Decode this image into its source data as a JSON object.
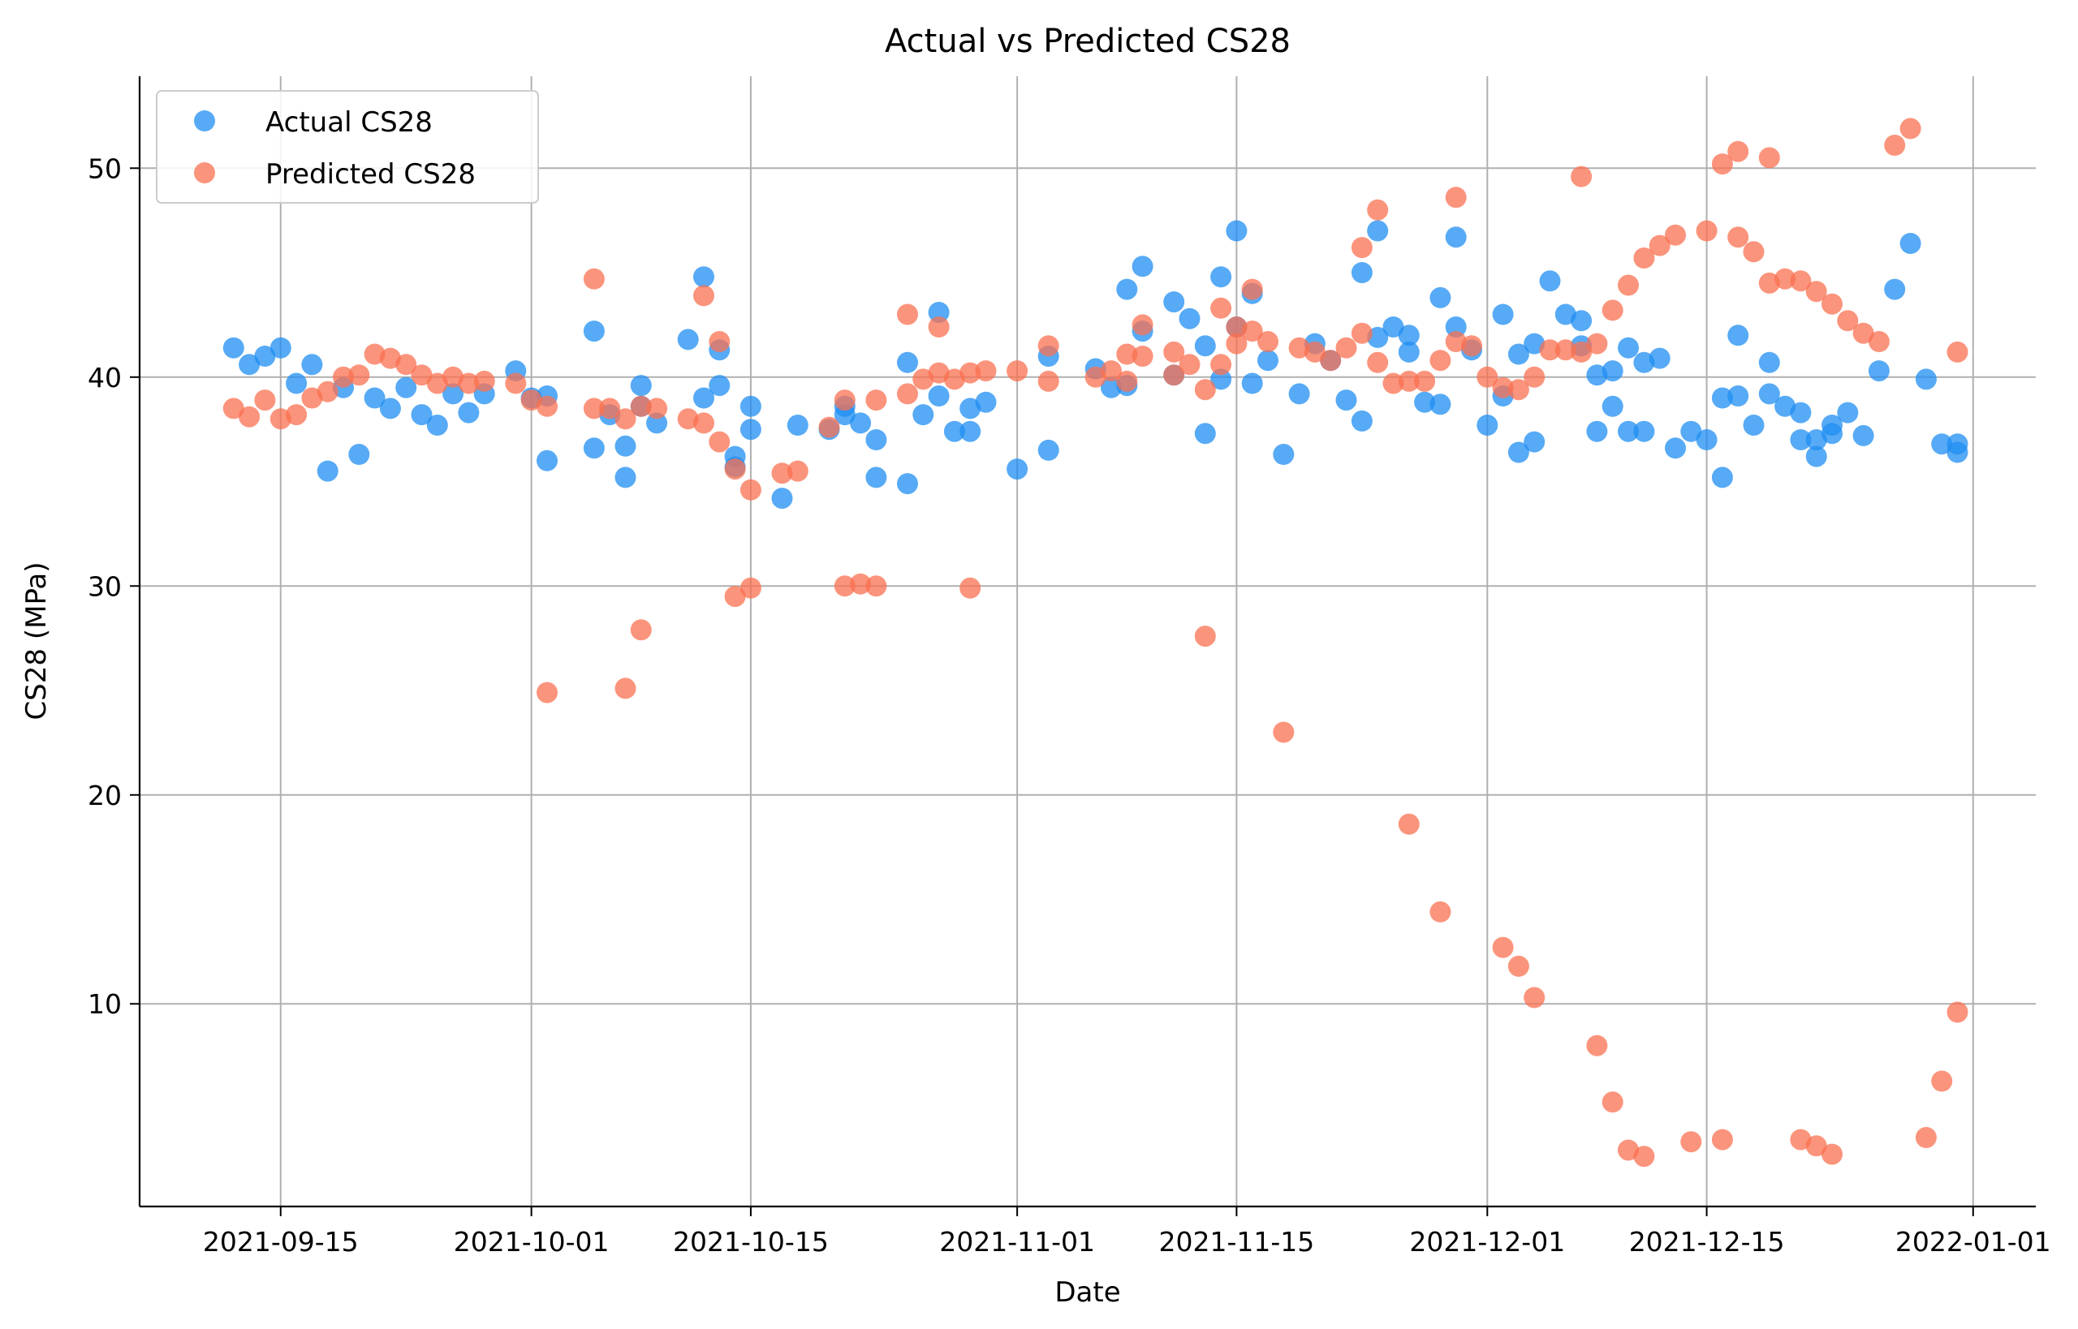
{
  "chart_data": {
    "type": "scatter",
    "title": "Actual vs Predicted CS28",
    "xlabel": "Date",
    "ylabel": "CS28 (MPa)",
    "grid": true,
    "legend_position": "top-left",
    "xlim": [
      "2021-09-06",
      "2022-01-05"
    ],
    "ylim": [
      0.3,
      54.4
    ],
    "x_ticks": [
      "2021-09-15",
      "2021-10-01",
      "2021-10-15",
      "2021-11-01",
      "2021-11-15",
      "2021-12-01",
      "2021-12-15",
      "2022-01-01"
    ],
    "y_ticks": [
      10,
      20,
      30,
      40,
      50
    ],
    "series": [
      {
        "name": "Actual CS28",
        "color": "#1f8ef1",
        "points": [
          [
            "2021-09-12",
            41.4
          ],
          [
            "2021-09-13",
            40.6
          ],
          [
            "2021-09-14",
            41.0
          ],
          [
            "2021-09-15",
            41.4
          ],
          [
            "2021-09-16",
            39.7
          ],
          [
            "2021-09-17",
            40.6
          ],
          [
            "2021-09-18",
            35.5
          ],
          [
            "2021-09-19",
            39.5
          ],
          [
            "2021-09-20",
            36.3
          ],
          [
            "2021-09-21",
            39.0
          ],
          [
            "2021-09-22",
            38.5
          ],
          [
            "2021-09-23",
            39.5
          ],
          [
            "2021-09-24",
            38.2
          ],
          [
            "2021-09-25",
            37.7
          ],
          [
            "2021-09-26",
            39.2
          ],
          [
            "2021-09-27",
            38.3
          ],
          [
            "2021-09-28",
            39.2
          ],
          [
            "2021-09-30",
            40.3
          ],
          [
            "2021-10-01",
            39.0
          ],
          [
            "2021-10-02",
            39.1
          ],
          [
            "2021-10-02",
            36.0
          ],
          [
            "2021-10-05",
            42.2
          ],
          [
            "2021-10-05",
            36.6
          ],
          [
            "2021-10-06",
            38.2
          ],
          [
            "2021-10-07",
            35.2
          ],
          [
            "2021-10-07",
            36.7
          ],
          [
            "2021-10-08",
            39.6
          ],
          [
            "2021-10-08",
            38.6
          ],
          [
            "2021-10-09",
            37.8
          ],
          [
            "2021-10-11",
            41.8
          ],
          [
            "2021-10-12",
            44.8
          ],
          [
            "2021-10-12",
            39.0
          ],
          [
            "2021-10-13",
            41.3
          ],
          [
            "2021-10-13",
            39.6
          ],
          [
            "2021-10-14",
            36.2
          ],
          [
            "2021-10-14",
            35.7
          ],
          [
            "2021-10-15",
            38.6
          ],
          [
            "2021-10-15",
            37.5
          ],
          [
            "2021-10-17",
            34.2
          ],
          [
            "2021-10-18",
            37.7
          ],
          [
            "2021-10-20",
            37.5
          ],
          [
            "2021-10-21",
            38.2
          ],
          [
            "2021-10-21",
            38.6
          ],
          [
            "2021-10-22",
            37.8
          ],
          [
            "2021-10-23",
            37.0
          ],
          [
            "2021-10-23",
            35.2
          ],
          [
            "2021-10-25",
            40.7
          ],
          [
            "2021-10-25",
            34.9
          ],
          [
            "2021-10-26",
            38.2
          ],
          [
            "2021-10-27",
            43.1
          ],
          [
            "2021-10-27",
            39.1
          ],
          [
            "2021-10-28",
            37.4
          ],
          [
            "2021-10-29",
            38.5
          ],
          [
            "2021-10-29",
            37.4
          ],
          [
            "2021-10-30",
            38.8
          ],
          [
            "2021-11-01",
            35.6
          ],
          [
            "2021-11-03",
            41.0
          ],
          [
            "2021-11-03",
            36.5
          ],
          [
            "2021-11-06",
            40.4
          ],
          [
            "2021-11-07",
            39.5
          ],
          [
            "2021-11-08",
            44.2
          ],
          [
            "2021-11-08",
            39.6
          ],
          [
            "2021-11-09",
            45.3
          ],
          [
            "2021-11-09",
            42.2
          ],
          [
            "2021-11-11",
            43.6
          ],
          [
            "2021-11-11",
            40.1
          ],
          [
            "2021-11-12",
            42.8
          ],
          [
            "2021-11-13",
            41.5
          ],
          [
            "2021-11-13",
            37.3
          ],
          [
            "2021-11-14",
            44.8
          ],
          [
            "2021-11-14",
            39.9
          ],
          [
            "2021-11-15",
            47.0
          ],
          [
            "2021-11-15",
            42.4
          ],
          [
            "2021-11-16",
            44.0
          ],
          [
            "2021-11-16",
            39.7
          ],
          [
            "2021-11-17",
            40.8
          ],
          [
            "2021-11-18",
            36.3
          ],
          [
            "2021-11-19",
            39.2
          ],
          [
            "2021-11-20",
            41.6
          ],
          [
            "2021-11-21",
            40.8
          ],
          [
            "2021-11-22",
            38.9
          ],
          [
            "2021-11-23",
            45.0
          ],
          [
            "2021-11-23",
            37.9
          ],
          [
            "2021-11-24",
            47.0
          ],
          [
            "2021-11-24",
            41.9
          ],
          [
            "2021-11-25",
            42.4
          ],
          [
            "2021-11-26",
            42.0
          ],
          [
            "2021-11-26",
            41.2
          ],
          [
            "2021-11-27",
            38.8
          ],
          [
            "2021-11-28",
            43.8
          ],
          [
            "2021-11-28",
            38.7
          ],
          [
            "2021-11-29",
            46.7
          ],
          [
            "2021-11-29",
            42.4
          ],
          [
            "2021-11-30",
            41.3
          ],
          [
            "2021-12-01",
            37.7
          ],
          [
            "2021-12-02",
            43.0
          ],
          [
            "2021-12-02",
            39.1
          ],
          [
            "2021-12-03",
            41.1
          ],
          [
            "2021-12-03",
            36.4
          ],
          [
            "2021-12-04",
            41.6
          ],
          [
            "2021-12-04",
            36.9
          ],
          [
            "2021-12-05",
            44.6
          ],
          [
            "2021-12-06",
            43.0
          ],
          [
            "2021-12-07",
            42.7
          ],
          [
            "2021-12-07",
            41.5
          ],
          [
            "2021-12-08",
            40.1
          ],
          [
            "2021-12-08",
            37.4
          ],
          [
            "2021-12-09",
            40.3
          ],
          [
            "2021-12-09",
            38.6
          ],
          [
            "2021-12-10",
            41.4
          ],
          [
            "2021-12-10",
            37.4
          ],
          [
            "2021-12-11",
            40.7
          ],
          [
            "2021-12-11",
            37.4
          ],
          [
            "2021-12-12",
            40.9
          ],
          [
            "2021-12-13",
            36.6
          ],
          [
            "2021-12-14",
            37.4
          ],
          [
            "2021-12-15",
            37.0
          ],
          [
            "2021-12-16",
            39.0
          ],
          [
            "2021-12-16",
            35.2
          ],
          [
            "2021-12-17",
            42.0
          ],
          [
            "2021-12-17",
            39.1
          ],
          [
            "2021-12-18",
            37.7
          ],
          [
            "2021-12-19",
            40.7
          ],
          [
            "2021-12-19",
            39.2
          ],
          [
            "2021-12-20",
            38.6
          ],
          [
            "2021-12-21",
            38.3
          ],
          [
            "2021-12-21",
            37.0
          ],
          [
            "2021-12-22",
            37.0
          ],
          [
            "2021-12-22",
            36.2
          ],
          [
            "2021-12-23",
            37.7
          ],
          [
            "2021-12-23",
            37.3
          ],
          [
            "2021-12-24",
            38.3
          ],
          [
            "2021-12-25",
            37.2
          ],
          [
            "2021-12-26",
            40.3
          ],
          [
            "2021-12-27",
            44.2
          ],
          [
            "2021-12-28",
            46.4
          ],
          [
            "2021-12-29",
            39.9
          ],
          [
            "2021-12-30",
            36.8
          ],
          [
            "2021-12-31",
            36.8
          ],
          [
            "2021-12-31",
            36.4
          ]
        ]
      },
      {
        "name": "Predicted CS28",
        "color": "#fa7050",
        "points": [
          [
            "2021-09-12",
            38.5
          ],
          [
            "2021-09-13",
            38.1
          ],
          [
            "2021-09-14",
            38.9
          ],
          [
            "2021-09-15",
            38.0
          ],
          [
            "2021-09-16",
            38.2
          ],
          [
            "2021-09-17",
            39.0
          ],
          [
            "2021-09-18",
            39.3
          ],
          [
            "2021-09-19",
            40.0
          ],
          [
            "2021-09-20",
            40.1
          ],
          [
            "2021-09-21",
            41.1
          ],
          [
            "2021-09-22",
            40.9
          ],
          [
            "2021-09-23",
            40.6
          ],
          [
            "2021-09-24",
            40.1
          ],
          [
            "2021-09-25",
            39.7
          ],
          [
            "2021-09-26",
            40.0
          ],
          [
            "2021-09-27",
            39.7
          ],
          [
            "2021-09-28",
            39.8
          ],
          [
            "2021-09-30",
            39.7
          ],
          [
            "2021-10-01",
            38.9
          ],
          [
            "2021-10-02",
            38.6
          ],
          [
            "2021-10-02",
            24.9
          ],
          [
            "2021-10-05",
            44.7
          ],
          [
            "2021-10-05",
            38.5
          ],
          [
            "2021-10-06",
            38.5
          ],
          [
            "2021-10-07",
            38.0
          ],
          [
            "2021-10-07",
            25.1
          ],
          [
            "2021-10-08",
            38.6
          ],
          [
            "2021-10-08",
            27.9
          ],
          [
            "2021-10-09",
            38.5
          ],
          [
            "2021-10-11",
            38.0
          ],
          [
            "2021-10-12",
            43.9
          ],
          [
            "2021-10-12",
            37.8
          ],
          [
            "2021-10-13",
            41.7
          ],
          [
            "2021-10-13",
            36.9
          ],
          [
            "2021-10-14",
            35.6
          ],
          [
            "2021-10-14",
            29.5
          ],
          [
            "2021-10-15",
            34.6
          ],
          [
            "2021-10-15",
            29.9
          ],
          [
            "2021-10-17",
            35.4
          ],
          [
            "2021-10-18",
            35.5
          ],
          [
            "2021-10-20",
            37.6
          ],
          [
            "2021-10-21",
            38.9
          ],
          [
            "2021-10-21",
            30.0
          ],
          [
            "2021-10-22",
            30.1
          ],
          [
            "2021-10-23",
            38.9
          ],
          [
            "2021-10-23",
            30.0
          ],
          [
            "2021-10-25",
            43.0
          ],
          [
            "2021-10-25",
            39.2
          ],
          [
            "2021-10-26",
            39.9
          ],
          [
            "2021-10-27",
            42.4
          ],
          [
            "2021-10-27",
            40.2
          ],
          [
            "2021-10-28",
            39.9
          ],
          [
            "2021-10-29",
            40.2
          ],
          [
            "2021-10-29",
            29.9
          ],
          [
            "2021-10-30",
            40.3
          ],
          [
            "2021-11-01",
            40.3
          ],
          [
            "2021-11-03",
            41.5
          ],
          [
            "2021-11-03",
            39.8
          ],
          [
            "2021-11-06",
            40.0
          ],
          [
            "2021-11-07",
            40.3
          ],
          [
            "2021-11-08",
            41.1
          ],
          [
            "2021-11-08",
            39.8
          ],
          [
            "2021-11-09",
            42.5
          ],
          [
            "2021-11-09",
            41.0
          ],
          [
            "2021-11-11",
            41.2
          ],
          [
            "2021-11-11",
            40.1
          ],
          [
            "2021-11-12",
            40.6
          ],
          [
            "2021-11-13",
            39.4
          ],
          [
            "2021-11-13",
            27.6
          ],
          [
            "2021-11-14",
            43.3
          ],
          [
            "2021-11-14",
            40.6
          ],
          [
            "2021-11-15",
            42.4
          ],
          [
            "2021-11-15",
            41.6
          ],
          [
            "2021-11-16",
            44.2
          ],
          [
            "2021-11-16",
            42.2
          ],
          [
            "2021-11-17",
            41.7
          ],
          [
            "2021-11-18",
            23.0
          ],
          [
            "2021-11-19",
            41.4
          ],
          [
            "2021-11-20",
            41.2
          ],
          [
            "2021-11-21",
            40.8
          ],
          [
            "2021-11-22",
            41.4
          ],
          [
            "2021-11-23",
            46.2
          ],
          [
            "2021-11-23",
            42.1
          ],
          [
            "2021-11-24",
            48.0
          ],
          [
            "2021-11-24",
            40.7
          ],
          [
            "2021-11-25",
            39.7
          ],
          [
            "2021-11-26",
            39.8
          ],
          [
            "2021-11-26",
            18.6
          ],
          [
            "2021-11-27",
            39.8
          ],
          [
            "2021-11-28",
            40.8
          ],
          [
            "2021-11-28",
            14.4
          ],
          [
            "2021-11-29",
            48.6
          ],
          [
            "2021-11-29",
            41.7
          ],
          [
            "2021-11-30",
            41.5
          ],
          [
            "2021-12-01",
            40.0
          ],
          [
            "2021-12-02",
            39.5
          ],
          [
            "2021-12-02",
            12.7
          ],
          [
            "2021-12-03",
            39.4
          ],
          [
            "2021-12-03",
            11.8
          ],
          [
            "2021-12-04",
            40.0
          ],
          [
            "2021-12-04",
            10.3
          ],
          [
            "2021-12-05",
            41.3
          ],
          [
            "2021-12-06",
            41.3
          ],
          [
            "2021-12-07",
            49.6
          ],
          [
            "2021-12-07",
            41.2
          ],
          [
            "2021-12-08",
            41.6
          ],
          [
            "2021-12-08",
            8.0
          ],
          [
            "2021-12-09",
            43.2
          ],
          [
            "2021-12-09",
            5.3
          ],
          [
            "2021-12-10",
            44.4
          ],
          [
            "2021-12-10",
            3.0
          ],
          [
            "2021-12-11",
            45.7
          ],
          [
            "2021-12-11",
            2.7
          ],
          [
            "2021-12-12",
            46.3
          ],
          [
            "2021-12-13",
            46.8
          ],
          [
            "2021-12-14",
            3.4
          ],
          [
            "2021-12-15",
            47.0
          ],
          [
            "2021-12-16",
            50.2
          ],
          [
            "2021-12-16",
            3.5
          ],
          [
            "2021-12-17",
            50.8
          ],
          [
            "2021-12-17",
            46.7
          ],
          [
            "2021-12-18",
            46.0
          ],
          [
            "2021-12-19",
            50.5
          ],
          [
            "2021-12-19",
            44.5
          ],
          [
            "2021-12-20",
            44.7
          ],
          [
            "2021-12-21",
            44.6
          ],
          [
            "2021-12-21",
            3.5
          ],
          [
            "2021-12-22",
            44.1
          ],
          [
            "2021-12-22",
            3.2
          ],
          [
            "2021-12-23",
            43.5
          ],
          [
            "2021-12-23",
            2.8
          ],
          [
            "2021-12-24",
            42.7
          ],
          [
            "2021-12-25",
            42.1
          ],
          [
            "2021-12-26",
            41.7
          ],
          [
            "2021-12-27",
            51.1
          ],
          [
            "2021-12-28",
            51.9
          ],
          [
            "2021-12-29",
            3.6
          ],
          [
            "2021-12-30",
            6.3
          ],
          [
            "2021-12-31",
            41.2
          ],
          [
            "2021-12-31",
            9.6
          ]
        ]
      }
    ]
  }
}
